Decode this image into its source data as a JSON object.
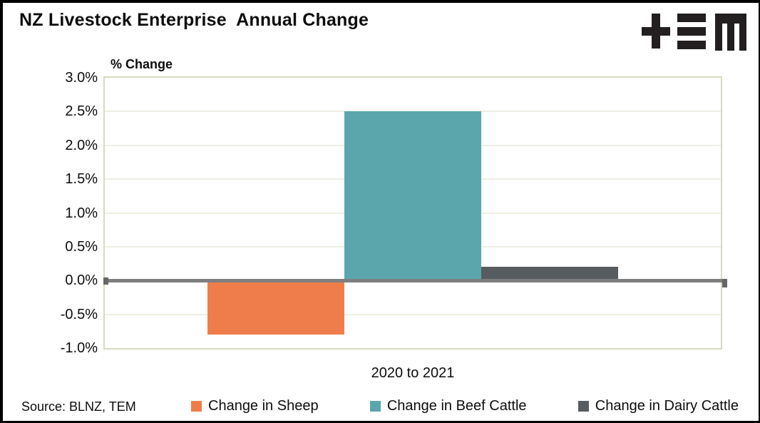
{
  "header": {
    "title": "NZ Livestock Enterprise  Annual Change",
    "logo_name": "tem-logo"
  },
  "footer": {
    "source": "Source: BLNZ, TEM"
  },
  "chart_data": {
    "type": "bar",
    "title": "NZ Livestock Enterprise  Annual Change",
    "axis_title": "% Change",
    "xlabel": "",
    "ylabel": "% Change",
    "categories": [
      "2020 to 2021"
    ],
    "series": [
      {
        "name": "Change in Sheep",
        "color": "#EF7D4B",
        "values": [
          -0.8
        ]
      },
      {
        "name": "Change in Beef Cattle",
        "color": "#5BA6AD",
        "values": [
          2.5
        ]
      },
      {
        "name": "Change in Dairy Cattle",
        "color": "#565C60",
        "values": [
          0.2
        ]
      }
    ],
    "ylim": [
      -1.0,
      3.0
    ],
    "ytick_step": 0.5,
    "ytick_format": "percent1",
    "grid": true,
    "legend_position": "bottom",
    "colors": {
      "zero_axis": "#7f7f7f",
      "gridline": "#efeee3",
      "plot_border": "#d9d9c1",
      "logo": "#231f20"
    }
  }
}
